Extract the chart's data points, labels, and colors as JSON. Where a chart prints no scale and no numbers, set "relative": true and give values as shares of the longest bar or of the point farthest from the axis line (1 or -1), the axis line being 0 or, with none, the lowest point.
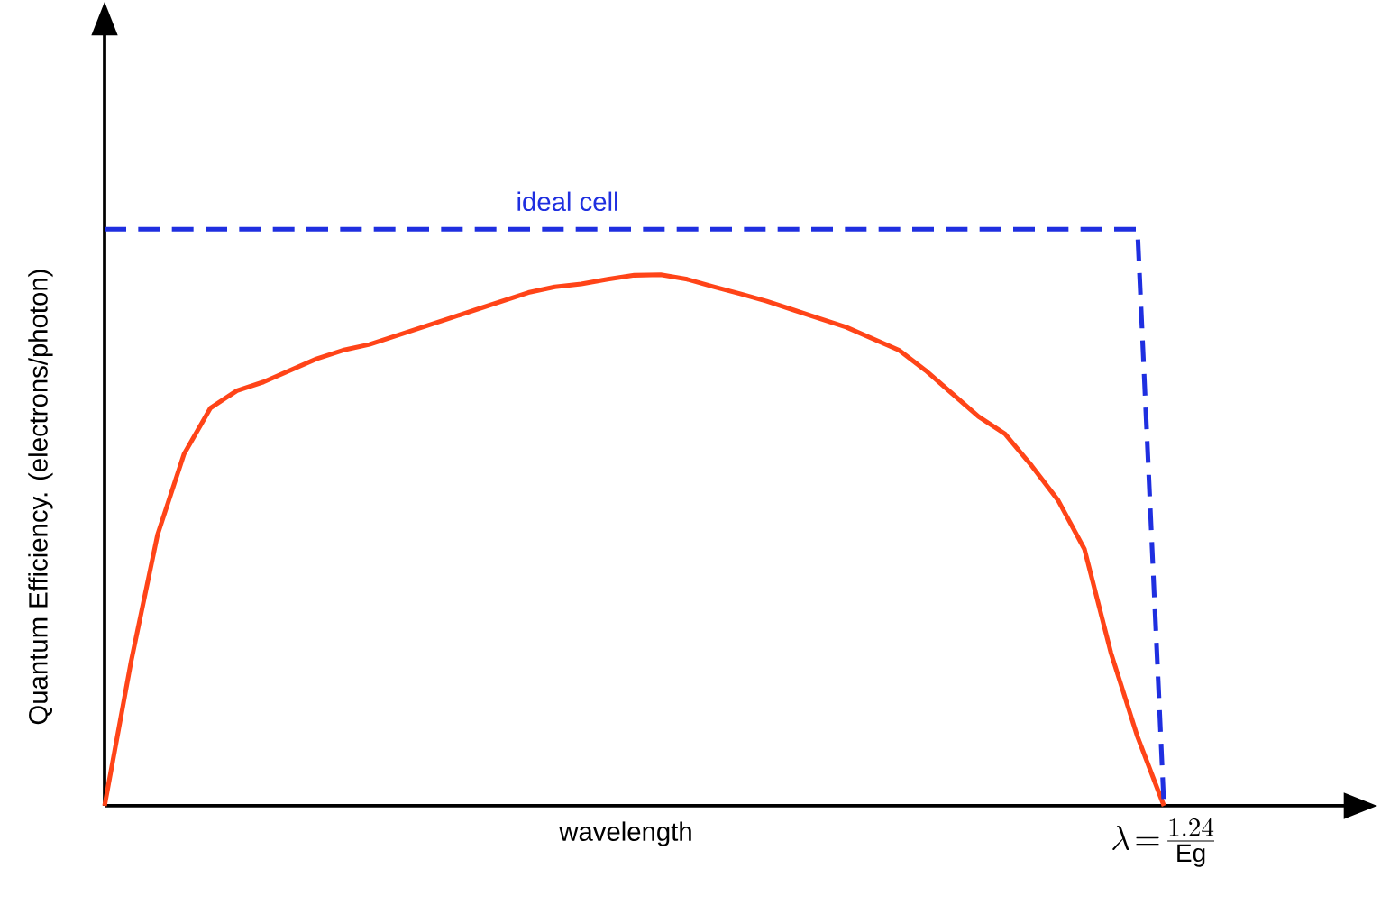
{
  "chart_data": {
    "type": "line",
    "relative": true,
    "xlabel": "wavelength",
    "ylabel": "Quantum Efficiency. (electrons/photon)",
    "annotations": [
      "\\lambda\\!=\\!\\frac{1.24}{\\mathrm{Eg}}"
    ],
    "categories": [
      null,
      null,
      null,
      null,
      null,
      null,
      null,
      null,
      null,
      null,
      null,
      null,
      null,
      null,
      null,
      null,
      null,
      null,
      null,
      null,
      null,
      null,
      null,
      null,
      null,
      null,
      null,
      null,
      null,
      null,
      null,
      null,
      null,
      null,
      null,
      null,
      null,
      null,
      null,
      null,
      null
    ],
    "series": [
      {
        "color": "#ff4418",
        "line_style": "solid",
        "values": [
          0,
          0.25,
          0.47,
          0.61,
          0.69,
          0.72,
          0.735,
          0.755,
          0.775,
          0.79,
          0.8,
          0.815,
          0.83,
          0.845,
          0.86,
          0.875,
          0.89,
          0.9,
          0.905,
          0.913,
          0.92,
          0.921,
          0.913,
          0.9,
          0.888,
          0.875,
          0.86,
          0.845,
          0.83,
          0.81,
          0.79,
          0.755,
          0.715,
          0.675,
          0.645,
          0.59,
          0.53,
          0.445,
          0.265,
          0.12,
          0
        ]
      },
      {
        "name": "ideal cell",
        "color": "#1f2fe0",
        "line_style": "dashed",
        "values": [
          1,
          1,
          1,
          1,
          1,
          1,
          1,
          1,
          1,
          1,
          1,
          1,
          1,
          1,
          1,
          1,
          1,
          1,
          1,
          1,
          1,
          1,
          1,
          1,
          1,
          1,
          1,
          1,
          1,
          1,
          1,
          1,
          1,
          1,
          1,
          1,
          1,
          1,
          1,
          1,
          0
        ]
      }
    ]
  }
}
